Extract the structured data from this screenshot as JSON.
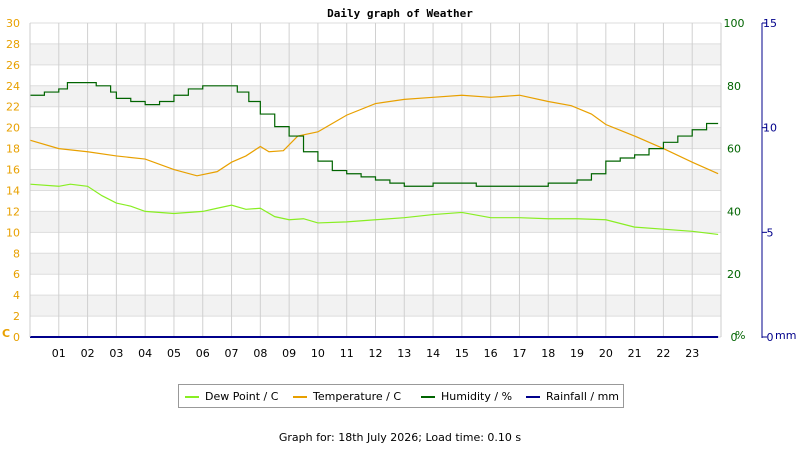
{
  "chart_data": {
    "type": "line",
    "title": "Daily graph of Weather",
    "x_ticks": [
      "01",
      "02",
      "03",
      "04",
      "05",
      "06",
      "07",
      "08",
      "09",
      "10",
      "11",
      "12",
      "13",
      "14",
      "15",
      "16",
      "17",
      "18",
      "19",
      "20",
      "21",
      "22",
      "23"
    ],
    "xlim": [
      0,
      24
    ],
    "y_left": {
      "unit_label": "C",
      "ylim": [
        0,
        30
      ],
      "ticks": [
        0,
        2,
        4,
        6,
        8,
        10,
        12,
        14,
        16,
        18,
        20,
        22,
        24,
        26,
        28,
        30
      ],
      "color": "#e8a000"
    },
    "y_right1": {
      "unit_label": "%",
      "ylim": [
        0,
        100
      ],
      "ticks": [
        0,
        20,
        40,
        60,
        80,
        100
      ],
      "color": "#006400"
    },
    "y_right2": {
      "unit_label": "mm",
      "ylim": [
        0,
        15
      ],
      "ticks": [
        0,
        5,
        10,
        15
      ],
      "color": "#00008b"
    },
    "series": [
      {
        "name": "Dew Point / C",
        "axis": "left",
        "color": "#88ee22",
        "x": [
          0,
          1,
          1.4,
          2,
          2.5,
          3,
          3.5,
          4,
          5,
          6,
          6.5,
          7,
          7.5,
          8,
          8.5,
          9,
          9.5,
          10,
          11,
          12,
          13,
          14,
          15,
          16,
          17,
          18,
          19,
          20,
          21,
          22,
          23,
          23.9
        ],
        "y": [
          14.6,
          14.4,
          14.6,
          14.4,
          13.5,
          12.8,
          12.5,
          12,
          11.8,
          12.0,
          12.3,
          12.6,
          12.2,
          12.3,
          11.5,
          11.2,
          11.3,
          10.9,
          11.0,
          11.2,
          11.4,
          11.7,
          11.9,
          11.4,
          11.4,
          11.3,
          11.3,
          11.2,
          10.5,
          10.3,
          10.1,
          9.8
        ]
      },
      {
        "name": "Temperature / C",
        "axis": "left",
        "color": "#e8a000",
        "x": [
          0,
          1,
          2,
          3,
          4,
          5,
          5.8,
          6.5,
          7,
          7.5,
          8,
          8.3,
          8.8,
          9.3,
          10,
          11,
          12,
          13,
          14,
          15,
          16,
          17,
          18,
          18.8,
          19.5,
          20,
          21,
          22,
          23,
          23.9
        ],
        "y": [
          18.8,
          18,
          17.7,
          17.3,
          17,
          16,
          15.4,
          15.8,
          16.7,
          17.3,
          18.2,
          17.7,
          17.8,
          19.2,
          19.6,
          21.2,
          22.3,
          22.7,
          22.9,
          23.1,
          22.9,
          23.1,
          22.5,
          22.1,
          21.3,
          20.3,
          19.2,
          18,
          16.7,
          15.6
        ]
      },
      {
        "name": "Humidity / %",
        "axis": "right1",
        "color": "#006400",
        "x": [
          0,
          0.5,
          1,
          1.3,
          2,
          2.3,
          2.8,
          3,
          3.5,
          4,
          4.5,
          5,
          5.5,
          6,
          6.8,
          7.2,
          7.6,
          8,
          8.5,
          9,
          9.5,
          10,
          10.5,
          11,
          11.5,
          12,
          12.5,
          13,
          13.5,
          14,
          14.5,
          15,
          15.5,
          16,
          16.5,
          17,
          17.5,
          18,
          18.5,
          19,
          19.5,
          20,
          20.5,
          21,
          21.5,
          22,
          22.5,
          23,
          23.5,
          23.9
        ],
        "y": [
          77,
          78,
          79,
          81,
          81,
          80,
          78,
          76,
          75,
          74,
          75,
          77,
          79,
          80,
          80,
          78,
          75,
          71,
          67,
          64,
          59,
          56,
          53,
          52,
          51,
          50,
          49,
          48,
          48,
          49,
          49,
          49,
          48,
          48,
          48,
          48,
          48,
          49,
          49,
          50,
          52,
          56,
          57,
          58,
          60,
          62,
          64,
          66,
          68,
          68
        ]
      },
      {
        "name": "Rainfall / mm",
        "axis": "right2",
        "color": "#00008b",
        "x": [
          0,
          23.9
        ],
        "y": [
          0,
          0
        ]
      }
    ],
    "legend": [
      "Dew Point / C",
      "Temperature / C",
      "Humidity / %",
      "Rainfall / mm"
    ],
    "legend_placement": "bottom",
    "grid": true
  },
  "footer": "Graph for: 18th July 2026; Load time: 0.10 s"
}
